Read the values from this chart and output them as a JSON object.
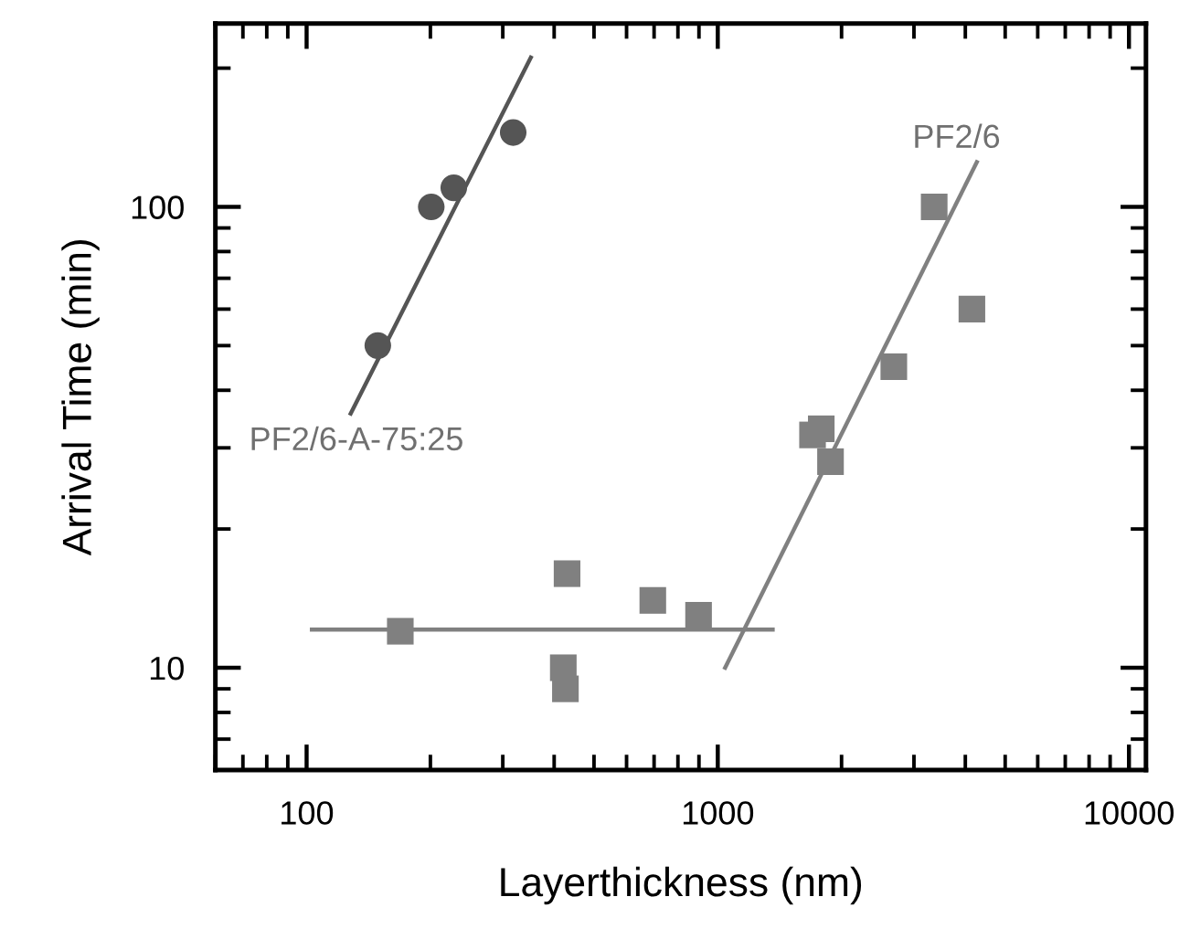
{
  "chart_data": {
    "type": "scatter",
    "xlabel": "Layerthickness (nm)",
    "ylabel": "Arrival Time (min)",
    "log": "xy",
    "grid": false,
    "legend": false,
    "xlim": [
      60,
      11000
    ],
    "ylim": [
      6,
      250
    ],
    "xticks": [
      100,
      1000,
      10000
    ],
    "yticks": [
      10,
      100
    ],
    "series": [
      {
        "name": "PF2/6-A-75:25",
        "marker": "circle",
        "color": "#555555",
        "x": [
          149,
          201,
          228,
          318
        ],
        "values": [
          50,
          100,
          110,
          145
        ]
      },
      {
        "type": "line",
        "marker": "none",
        "color": "#555555",
        "x": [
          128,
          351
        ],
        "values": [
          35.6,
          211
        ]
      },
      {
        "name": "PF2/6",
        "marker": "square",
        "color": "#808080",
        "x": [
          169,
          430,
          421,
          426,
          695,
          898,
          1700,
          1785,
          1880,
          2680,
          3360,
          4150
        ],
        "values": [
          12,
          16,
          10,
          9,
          14,
          13,
          32,
          33,
          28,
          45,
          100,
          60
        ]
      },
      {
        "type": "line",
        "marker": "none",
        "color": "#808080",
        "x": [
          103,
          1360
        ],
        "values": [
          12.1,
          12.1
        ]
      },
      {
        "type": "line",
        "marker": "none",
        "color": "#808080",
        "x": [
          1042,
          4266
        ],
        "values": [
          10,
          125
        ]
      }
    ]
  }
}
